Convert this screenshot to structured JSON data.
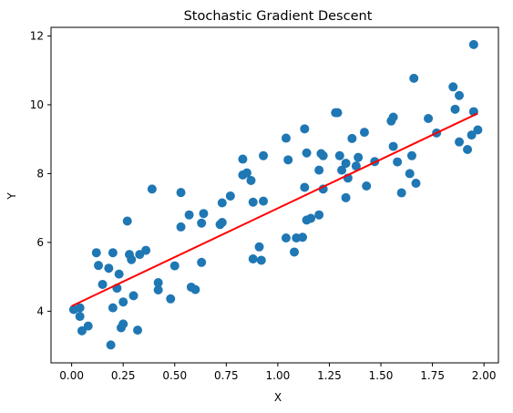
{
  "chart_data": {
    "type": "scatter",
    "title": "Stochastic Gradient Descent",
    "xlabel": "X",
    "ylabel": "Y",
    "xlim": [
      -0.1,
      2.07
    ],
    "ylim": [
      2.5,
      12.25
    ],
    "xticks": [
      0.0,
      0.25,
      0.5,
      0.75,
      1.0,
      1.25,
      1.5,
      1.75,
      2.0
    ],
    "xtick_labels": [
      "0.00",
      "0.25",
      "0.50",
      "0.75",
      "1.00",
      "1.25",
      "1.50",
      "1.75",
      "2.00"
    ],
    "yticks": [
      4,
      6,
      8,
      10,
      12
    ],
    "ytick_labels": [
      "4",
      "6",
      "8",
      "10",
      "12"
    ],
    "grid": false,
    "colors": {
      "points": "#1f77b4",
      "line": "#ff0000"
    },
    "series": [
      {
        "kind": "scatter",
        "points": [
          [
            0.01,
            4.05
          ],
          [
            0.04,
            4.1
          ],
          [
            0.04,
            3.85
          ],
          [
            0.05,
            3.43
          ],
          [
            0.08,
            3.57
          ],
          [
            0.12,
            5.7
          ],
          [
            0.13,
            5.33
          ],
          [
            0.15,
            4.78
          ],
          [
            0.18,
            5.25
          ],
          [
            0.2,
            5.7
          ],
          [
            0.2,
            4.1
          ],
          [
            0.19,
            3.02
          ],
          [
            0.22,
            4.67
          ],
          [
            0.23,
            5.08
          ],
          [
            0.25,
            4.27
          ],
          [
            0.24,
            3.52
          ],
          [
            0.25,
            3.63
          ],
          [
            0.27,
            6.62
          ],
          [
            0.28,
            5.65
          ],
          [
            0.29,
            5.5
          ],
          [
            0.3,
            4.45
          ],
          [
            0.32,
            3.45
          ],
          [
            0.33,
            5.65
          ],
          [
            0.36,
            5.77
          ],
          [
            0.39,
            7.55
          ],
          [
            0.42,
            4.83
          ],
          [
            0.42,
            4.62
          ],
          [
            0.48,
            4.36
          ],
          [
            0.5,
            5.32
          ],
          [
            0.53,
            7.45
          ],
          [
            0.53,
            6.45
          ],
          [
            0.57,
            6.8
          ],
          [
            0.58,
            4.7
          ],
          [
            0.6,
            4.63
          ],
          [
            0.63,
            6.56
          ],
          [
            0.63,
            5.42
          ],
          [
            0.64,
            6.84
          ],
          [
            0.72,
            6.52
          ],
          [
            0.73,
            7.15
          ],
          [
            0.73,
            6.58
          ],
          [
            0.77,
            7.35
          ],
          [
            0.83,
            8.42
          ],
          [
            0.83,
            7.96
          ],
          [
            0.85,
            8.02
          ],
          [
            0.87,
            7.8
          ],
          [
            0.88,
            7.17
          ],
          [
            0.88,
            5.52
          ],
          [
            0.91,
            5.87
          ],
          [
            0.92,
            5.48
          ],
          [
            0.93,
            7.2
          ],
          [
            0.93,
            8.52
          ],
          [
            1.04,
            9.03
          ],
          [
            1.04,
            6.13
          ],
          [
            1.05,
            8.4
          ],
          [
            1.08,
            5.72
          ],
          [
            1.09,
            6.13
          ],
          [
            1.12,
            6.15
          ],
          [
            1.13,
            9.3
          ],
          [
            1.13,
            7.6
          ],
          [
            1.14,
            8.6
          ],
          [
            1.14,
            6.65
          ],
          [
            1.16,
            6.7
          ],
          [
            1.2,
            8.1
          ],
          [
            1.2,
            6.8
          ],
          [
            1.21,
            8.58
          ],
          [
            1.22,
            8.52
          ],
          [
            1.22,
            7.55
          ],
          [
            1.28,
            9.77
          ],
          [
            1.29,
            9.77
          ],
          [
            1.3,
            8.52
          ],
          [
            1.31,
            8.1
          ],
          [
            1.33,
            7.3
          ],
          [
            1.33,
            8.3
          ],
          [
            1.34,
            7.87
          ],
          [
            1.36,
            9.02
          ],
          [
            1.38,
            8.22
          ],
          [
            1.39,
            8.47
          ],
          [
            1.42,
            9.2
          ],
          [
            1.43,
            7.64
          ],
          [
            1.47,
            8.35
          ],
          [
            1.55,
            9.53
          ],
          [
            1.56,
            9.64
          ],
          [
            1.56,
            8.79
          ],
          [
            1.58,
            8.34
          ],
          [
            1.6,
            7.44
          ],
          [
            1.64,
            8.0
          ],
          [
            1.65,
            8.52
          ],
          [
            1.66,
            10.77
          ],
          [
            1.67,
            7.72
          ],
          [
            1.73,
            9.6
          ],
          [
            1.77,
            9.18
          ],
          [
            1.85,
            10.52
          ],
          [
            1.86,
            9.87
          ],
          [
            1.88,
            10.27
          ],
          [
            1.88,
            8.92
          ],
          [
            1.92,
            8.7
          ],
          [
            1.94,
            9.12
          ],
          [
            1.95,
            9.8
          ],
          [
            1.95,
            11.75
          ],
          [
            1.97,
            9.27
          ]
        ]
      },
      {
        "kind": "line",
        "points": [
          [
            0.0,
            4.15
          ],
          [
            1.97,
            9.75
          ]
        ]
      }
    ]
  }
}
